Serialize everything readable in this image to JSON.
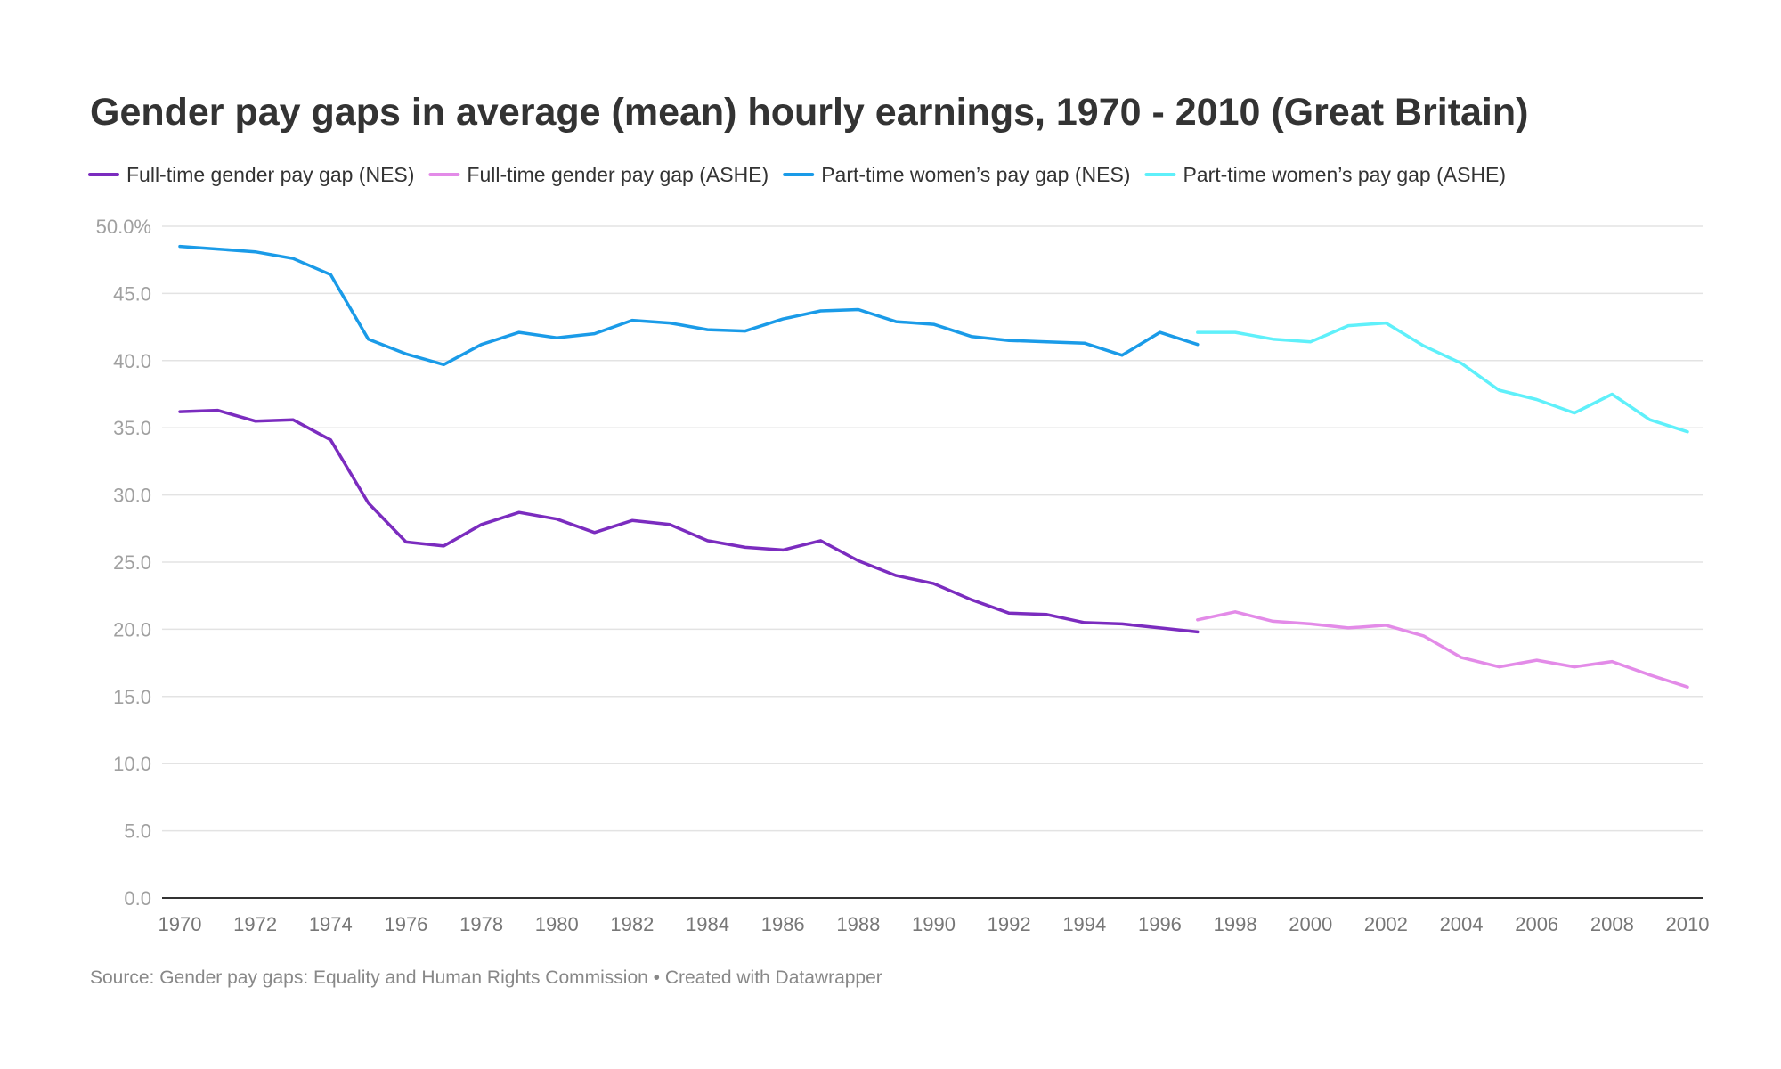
{
  "chart_data": {
    "type": "line",
    "title": "Gender pay gaps in average (mean) hourly earnings, 1970 - 2010 (Great Britain)",
    "source": "Source: Gender pay gaps: Equality and Human Rights Commission • Created with Datawrapper",
    "xlim": [
      1970,
      2010
    ],
    "ylim": [
      0,
      50
    ],
    "grid": true,
    "legend_position": "top-left",
    "x_ticks": [
      "1970",
      "1972",
      "1974",
      "1976",
      "1978",
      "1980",
      "1982",
      "1984",
      "1986",
      "1988",
      "1990",
      "1992",
      "1994",
      "1996",
      "1998",
      "2000",
      "2002",
      "2004",
      "2006",
      "2008",
      "2010"
    ],
    "y_ticks": [
      {
        "value": 50,
        "label": "50.0%"
      },
      {
        "value": 45,
        "label": "45.0"
      },
      {
        "value": 40,
        "label": "40.0"
      },
      {
        "value": 35,
        "label": "35.0"
      },
      {
        "value": 30,
        "label": "30.0"
      },
      {
        "value": 25,
        "label": "25.0"
      },
      {
        "value": 20,
        "label": "20.0"
      },
      {
        "value": 15,
        "label": "15.0"
      },
      {
        "value": 10,
        "label": "10.0"
      },
      {
        "value": 5,
        "label": "5.0"
      },
      {
        "value": 0,
        "label": "0.0"
      }
    ],
    "series": [
      {
        "name": "Full-time gender pay gap (NES)",
        "color": "#7b2cbf",
        "x": [
          1970,
          1971,
          1972,
          1973,
          1974,
          1975,
          1976,
          1977,
          1978,
          1979,
          1980,
          1981,
          1982,
          1983,
          1984,
          1985,
          1986,
          1987,
          1988,
          1989,
          1990,
          1991,
          1992,
          1993,
          1994,
          1995,
          1996,
          1997
        ],
        "values": [
          36.2,
          36.3,
          35.5,
          35.6,
          34.1,
          29.4,
          26.5,
          26.2,
          27.8,
          28.7,
          28.2,
          27.2,
          28.1,
          27.8,
          26.6,
          26.1,
          25.9,
          26.6,
          25.1,
          24.0,
          23.4,
          22.2,
          21.2,
          21.1,
          20.5,
          20.4,
          20.1,
          19.8
        ]
      },
      {
        "name": "Full-time gender pay gap (ASHE)",
        "color": "#e38be8",
        "x": [
          1997,
          1998,
          1999,
          2000,
          2001,
          2002,
          2003,
          2004,
          2005,
          2006,
          2007,
          2008,
          2009,
          2010
        ],
        "values": [
          20.7,
          21.3,
          20.6,
          20.4,
          20.1,
          20.3,
          19.5,
          17.9,
          17.2,
          17.7,
          17.2,
          17.6,
          16.6,
          15.7
        ]
      },
      {
        "name": "Part-time women’s pay gap (NES)",
        "color": "#1a9be8",
        "x": [
          1970,
          1971,
          1972,
          1973,
          1974,
          1975,
          1976,
          1977,
          1978,
          1979,
          1980,
          1981,
          1982,
          1983,
          1984,
          1985,
          1986,
          1987,
          1988,
          1989,
          1990,
          1991,
          1992,
          1993,
          1994,
          1995,
          1996,
          1997
        ],
        "values": [
          48.5,
          48.3,
          48.1,
          47.6,
          46.4,
          41.6,
          40.5,
          39.7,
          41.2,
          42.1,
          41.7,
          42.0,
          43.0,
          42.8,
          42.3,
          42.2,
          43.1,
          43.7,
          43.8,
          42.9,
          42.7,
          41.8,
          41.5,
          41.4,
          41.3,
          40.4,
          42.1,
          41.2
        ]
      },
      {
        "name": "Part-time women’s pay gap (ASHE)",
        "color": "#5ff0fa",
        "x": [
          1997,
          1998,
          1999,
          2000,
          2001,
          2002,
          2003,
          2004,
          2005,
          2006,
          2007,
          2008,
          2009,
          2010
        ],
        "values": [
          42.1,
          42.1,
          41.6,
          41.4,
          42.6,
          42.8,
          41.1,
          39.8,
          37.8,
          37.1,
          36.1,
          37.5,
          35.6,
          34.7
        ]
      }
    ]
  }
}
